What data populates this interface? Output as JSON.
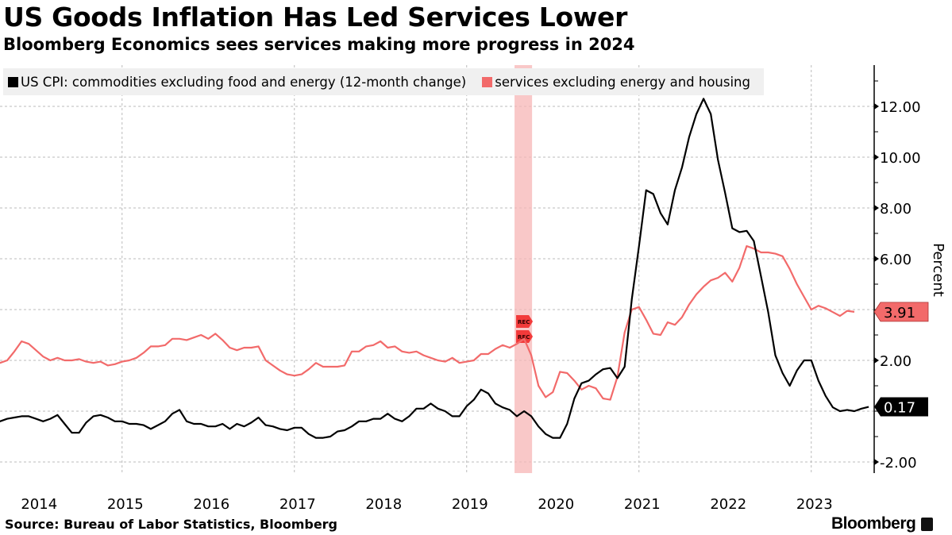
{
  "header": {
    "title": "US Goods Inflation Has Led Services Lower",
    "subtitle": "Bloomberg Economics sees services making more progress in 2024"
  },
  "legend": {
    "items": [
      {
        "label": "US CPI: commodities excluding food and energy (12-month change)",
        "color": "#000000"
      },
      {
        "label": "services excluding energy and housing",
        "color": "#f26a6a"
      }
    ]
  },
  "footer": {
    "source": "Source: Bureau of Labor Statistics, Bloomberg",
    "brand": "Bloomberg"
  },
  "chart_data": {
    "type": "line",
    "title": "US Goods Inflation Has Led Services Lower",
    "subtitle": "Bloomberg Economics sees services making more progress in 2024",
    "xlabel": "",
    "ylabel": "Percent",
    "x_start": "2014-01",
    "x_frequency": "monthly",
    "x_tick_labels": [
      "2014",
      "2015",
      "2016",
      "2017",
      "2018",
      "2019",
      "2020",
      "2021",
      "2022",
      "2023"
    ],
    "ylim": [
      -2.5,
      13.5
    ],
    "y_ticks": [
      -2,
      0,
      2,
      4,
      6,
      8,
      10,
      12
    ],
    "y_tick_labels": [
      "-2.00",
      "",
      "2.00",
      "",
      "6.00",
      "8.00",
      "10.00",
      "12.00"
    ],
    "grid": true,
    "legend_position": "top-left",
    "recession_shading": {
      "start": "2020-02",
      "end": "2020-04",
      "label": "REC",
      "color": "#f7b6b6"
    },
    "series": [
      {
        "name": "US CPI: commodities excluding food and energy (12-month change)",
        "color": "#000000",
        "last_value_label": "0.17",
        "values": [
          -0.35,
          -0.4,
          -0.3,
          -0.25,
          -0.2,
          -0.2,
          -0.3,
          -0.4,
          -0.3,
          -0.15,
          -0.5,
          -0.85,
          -0.85,
          -0.45,
          -0.2,
          -0.15,
          -0.25,
          -0.4,
          -0.4,
          -0.5,
          -0.5,
          -0.55,
          -0.7,
          -0.55,
          -0.4,
          -0.1,
          0.05,
          -0.4,
          -0.5,
          -0.5,
          -0.6,
          -0.6,
          -0.5,
          -0.7,
          -0.5,
          -0.6,
          -0.45,
          -0.25,
          -0.55,
          -0.6,
          -0.7,
          -0.75,
          -0.65,
          -0.65,
          -0.9,
          -1.05,
          -1.05,
          -1.0,
          -0.8,
          -0.75,
          -0.6,
          -0.4,
          -0.4,
          -0.3,
          -0.3,
          -0.1,
          -0.3,
          -0.4,
          -0.2,
          0.1,
          0.1,
          0.3,
          0.1,
          0.0,
          -0.2,
          -0.2,
          0.2,
          0.45,
          0.85,
          0.7,
          0.3,
          0.15,
          0.05,
          -0.2,
          0.0,
          -0.2,
          -0.6,
          -0.9,
          -1.05,
          -1.05,
          -0.5,
          0.5,
          1.1,
          1.2,
          1.45,
          1.65,
          1.7,
          1.3,
          1.75,
          4.4,
          6.5,
          8.7,
          8.55,
          7.8,
          7.35,
          8.7,
          9.6,
          10.8,
          11.7,
          12.3,
          11.7,
          9.9,
          8.6,
          7.2,
          7.05,
          7.1,
          6.7,
          5.3,
          3.9,
          2.2,
          1.5,
          1.0,
          1.6,
          2.0,
          2.0,
          1.2,
          0.6,
          0.15,
          0.0,
          0.05,
          0.0,
          0.1,
          0.17
        ]
      },
      {
        "name": "services excluding energy and housing",
        "color": "#f26a6a",
        "last_value_label": "3.91",
        "values": [
          1.95,
          1.9,
          2.0,
          2.35,
          2.75,
          2.65,
          2.4,
          2.15,
          2.0,
          2.1,
          2.0,
          2.0,
          2.05,
          1.95,
          1.9,
          1.95,
          1.8,
          1.85,
          1.95,
          2.0,
          2.1,
          2.3,
          2.55,
          2.55,
          2.6,
          2.85,
          2.85,
          2.8,
          2.9,
          3.0,
          2.85,
          3.05,
          2.8,
          2.5,
          2.4,
          2.5,
          2.5,
          2.55,
          2.0,
          1.8,
          1.6,
          1.45,
          1.4,
          1.45,
          1.65,
          1.9,
          1.75,
          1.75,
          1.75,
          1.8,
          2.35,
          2.35,
          2.55,
          2.6,
          2.75,
          2.5,
          2.55,
          2.35,
          2.3,
          2.35,
          2.2,
          2.1,
          2.0,
          1.95,
          2.1,
          1.9,
          1.95,
          2.0,
          2.25,
          2.25,
          2.45,
          2.6,
          2.5,
          2.65,
          2.85,
          2.2,
          1.0,
          0.55,
          0.75,
          1.55,
          1.5,
          1.2,
          0.85,
          1.0,
          0.9,
          0.5,
          0.45,
          1.35,
          3.1,
          4.0,
          4.1,
          3.6,
          3.05,
          3.0,
          3.5,
          3.4,
          3.7,
          4.2,
          4.6,
          4.9,
          5.15,
          5.25,
          5.45,
          5.1,
          5.65,
          6.5,
          6.4,
          6.25,
          6.25,
          6.2,
          6.1,
          5.6,
          5.0,
          4.5,
          4.0,
          4.15,
          4.05,
          3.9,
          3.75,
          3.95,
          3.91
        ]
      }
    ]
  }
}
